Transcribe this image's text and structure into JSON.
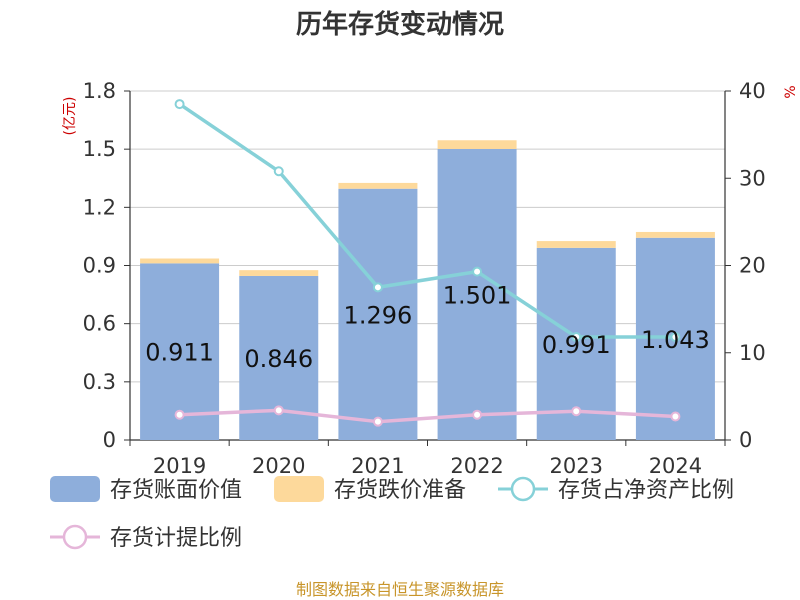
{
  "chart_data": {
    "type": "bar",
    "title": "历年存货变动情况",
    "categories": [
      "2019",
      "2020",
      "2021",
      "2022",
      "2023",
      "2024"
    ],
    "left_unit": "(亿元)",
    "right_unit": "%",
    "ylim_left": [
      0,
      1.8
    ],
    "yticks_left": [
      "0",
      "0.3",
      "0.6",
      "0.9",
      "1.2",
      "1.5",
      "1.8"
    ],
    "ylim_right": [
      0,
      40
    ],
    "yticks_right": [
      "0",
      "10",
      "20",
      "30",
      "40"
    ],
    "grid": true,
    "legend_position": "bottom",
    "series": [
      {
        "name": "存货账面价值",
        "type": "bar",
        "stack": "a",
        "axis": "left",
        "color": "#8eaedb",
        "values": [
          0.911,
          0.846,
          1.296,
          1.501,
          0.991,
          1.043
        ],
        "labels": [
          "0.911",
          "0.846",
          "1.296",
          "1.501",
          "0.991",
          "1.043"
        ]
      },
      {
        "name": "存货跌价准备",
        "type": "bar",
        "stack": "a",
        "axis": "left",
        "color": "#fdd99b",
        "values": [
          0.025,
          0.03,
          0.03,
          0.045,
          0.035,
          0.03
        ]
      },
      {
        "name": "存货占净资产比例",
        "type": "line",
        "axis": "right",
        "color": "#86d1d8",
        "values": [
          38.5,
          30.8,
          17.5,
          19.3,
          11.8,
          11.8
        ]
      },
      {
        "name": "存货计提比例",
        "type": "line",
        "axis": "right",
        "color": "#e5b6d9",
        "values": [
          2.9,
          3.4,
          2.1,
          2.9,
          3.3,
          2.7
        ]
      }
    ]
  },
  "footer": {
    "source": "制图数据来自恒生聚源数据库"
  }
}
